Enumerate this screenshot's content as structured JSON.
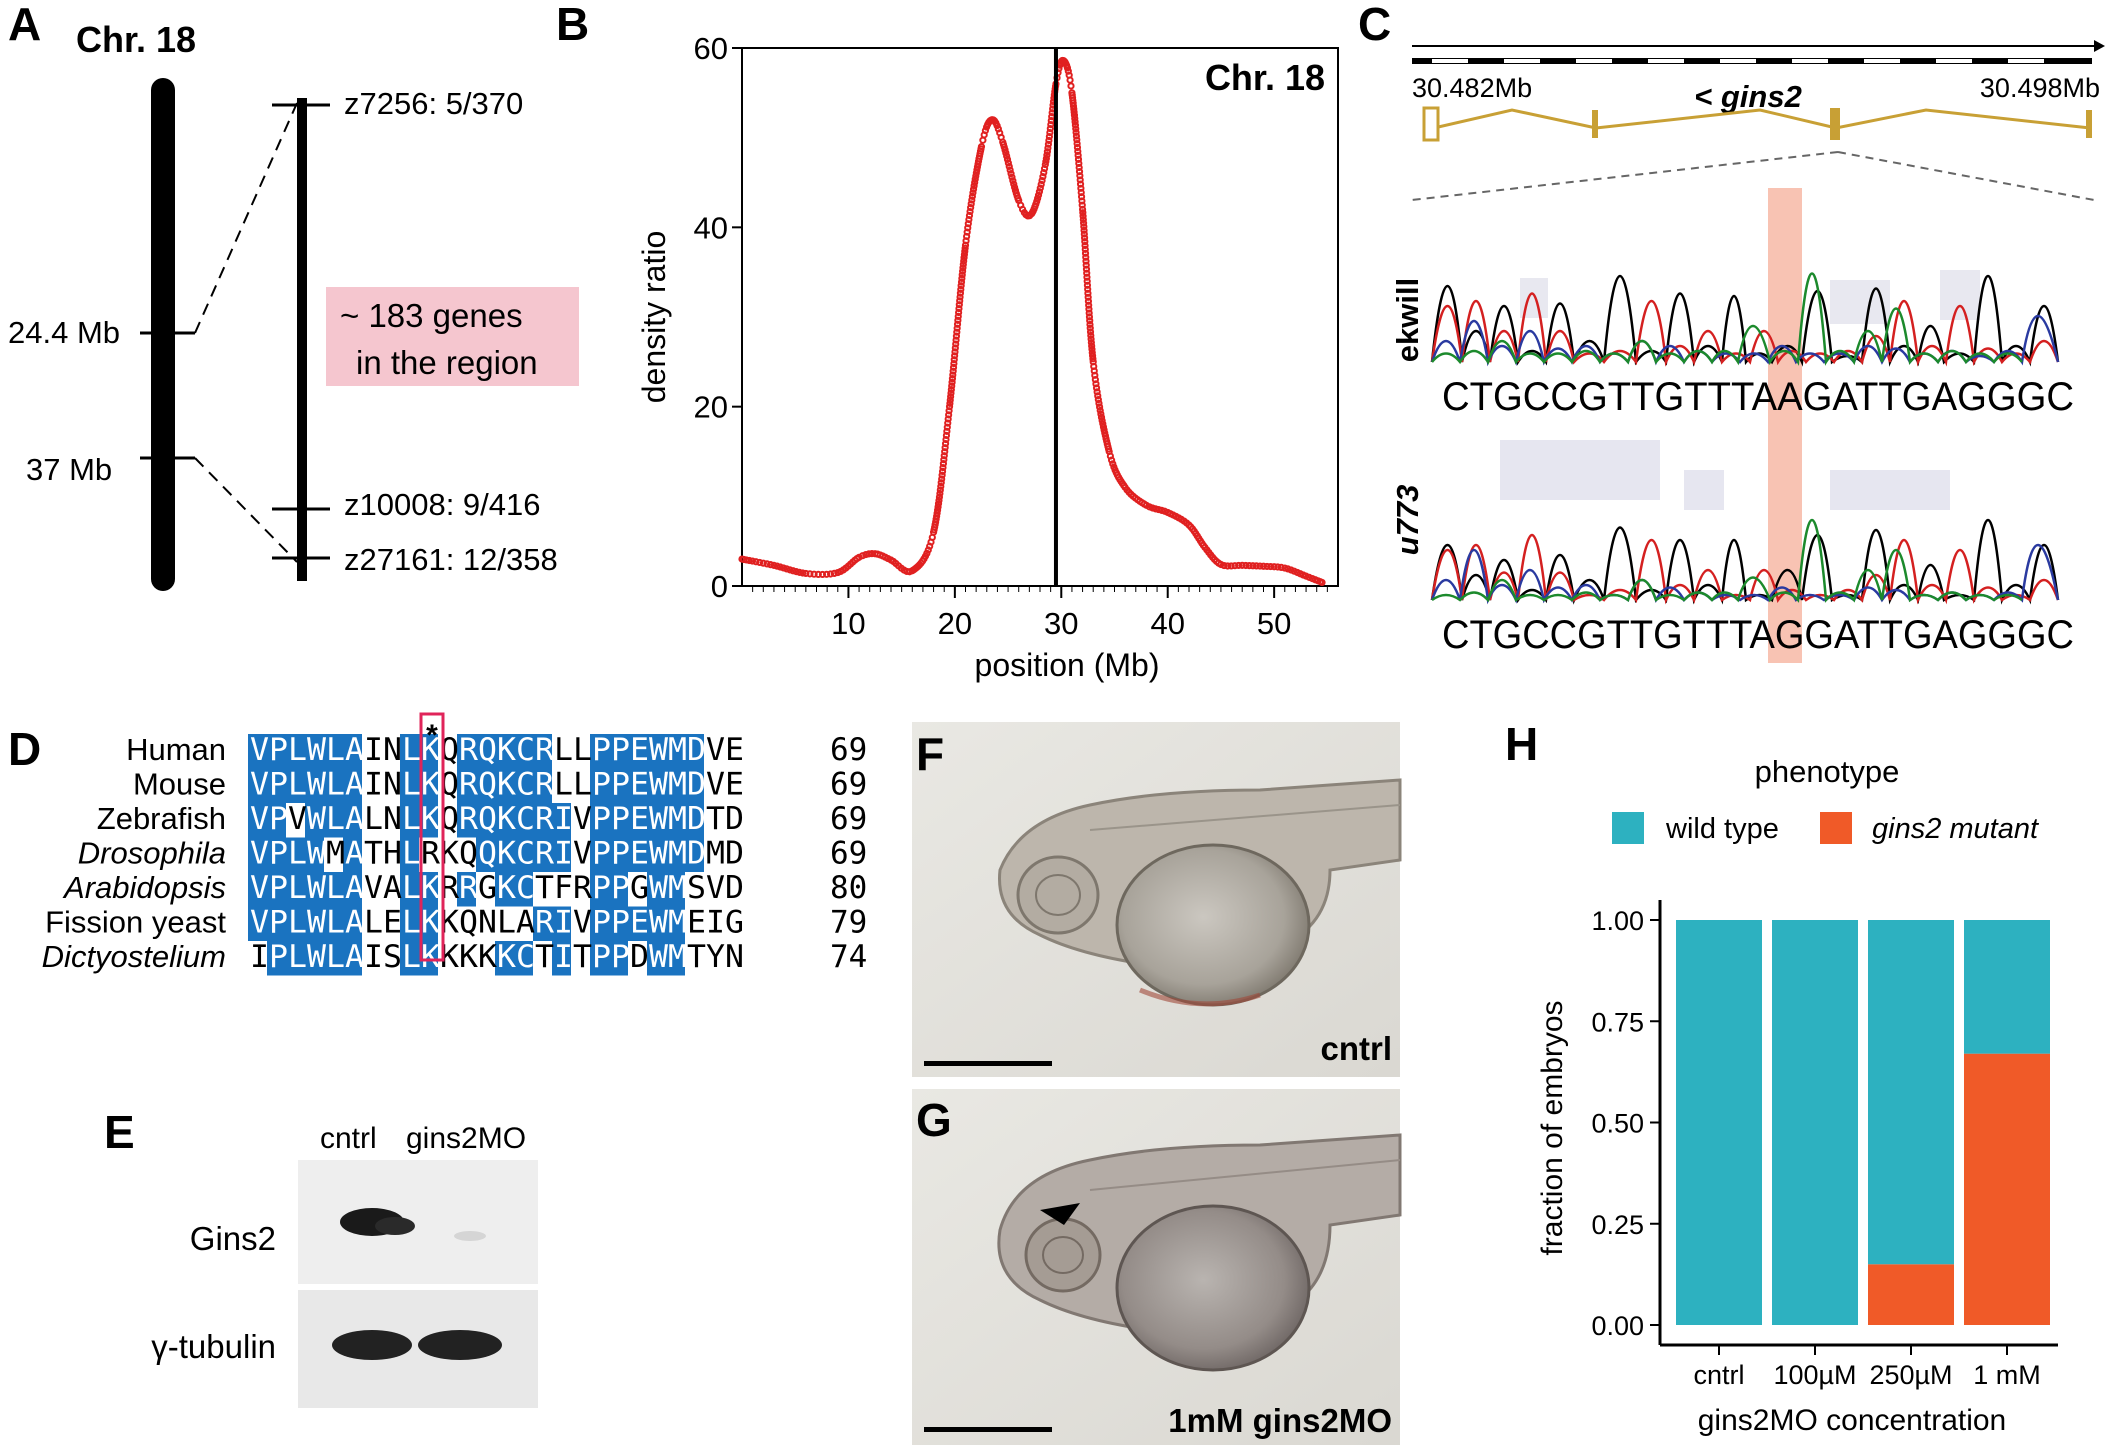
{
  "panels": {
    "a": "A",
    "b": "B",
    "c": "C",
    "d": "D",
    "e": "E",
    "f": "F",
    "g": "G",
    "h": "H"
  },
  "panelA": {
    "chrom_label": "Chr. 18",
    "pos_high": "24.4 Mb",
    "pos_low": "37 Mb",
    "markers": [
      "z7256: 5/370",
      "z10008: 9/416",
      "z27161: 12/358"
    ],
    "genes_line1": "~ 183 genes",
    "genes_line2": "in the region",
    "highlight_color": "#f5c6cf"
  },
  "chart_data": [
    {
      "id": "panelB",
      "type": "line",
      "title": "Chr. 18",
      "xlabel": "position (Mb)",
      "ylabel": "density ratio",
      "xlim": [
        0,
        56
      ],
      "ylim": [
        0,
        60
      ],
      "xticks": [
        10,
        20,
        30,
        40,
        50
      ],
      "yticks": [
        0,
        20,
        40,
        60
      ],
      "vline_x": 29.5,
      "series": [
        {
          "name": "density ratio",
          "color": "#e02020",
          "x": [
            0,
            3,
            6,
            9,
            11,
            12.5,
            14,
            16,
            18,
            19.5,
            21,
            22.5,
            23.5,
            24.5,
            26,
            27.2,
            28.5,
            29.5,
            30.2,
            31,
            32,
            33,
            34.5,
            36,
            38,
            40,
            42,
            43.5,
            45,
            47,
            49,
            51,
            53,
            54.5
          ],
          "y": [
            3,
            2.3,
            1.4,
            1.5,
            3.2,
            3.6,
            2.9,
            1.7,
            6,
            20,
            38,
            49,
            52,
            49.5,
            43,
            41.5,
            47,
            56,
            58.6,
            55,
            42,
            25,
            15,
            11,
            9,
            8.2,
            6.8,
            4.3,
            2.4,
            2.3,
            2.2,
            2,
            1.1,
            0.4
          ]
        }
      ]
    },
    {
      "id": "panelH",
      "type": "bar",
      "stacked": true,
      "legend_title": "phenotype",
      "xlabel": "gins2MO concentration",
      "ylabel": "fraction of embryos",
      "categories": [
        "cntrl",
        "100µM",
        "250µM",
        "1 mM"
      ],
      "ylim": [
        0,
        1
      ],
      "yticks": [
        "0.00",
        "0.25",
        "0.50",
        "0.75",
        "1.00"
      ],
      "series": [
        {
          "name": "gins2 mutant",
          "color": "#f05a28",
          "values": [
            0,
            0,
            0.15,
            0.67
          ]
        },
        {
          "name": "wild type",
          "color": "#2db1c0",
          "values": [
            1,
            1,
            0.85,
            0.33
          ]
        }
      ]
    }
  ],
  "panelC": {
    "coord_left": "30.482Mb",
    "coord_right": "30.498Mb",
    "gene_label": "< gins2",
    "sample1": "ekwill",
    "seq1": "CTGCCGTTGTTTAAGATTGAGGGC",
    "sample2": "u773",
    "seq2": "CTGCCGTTGTTTAGGATTGAGGGC",
    "highlight_color": "#f7b8a6"
  },
  "panelD": {
    "marker_star": "*",
    "rows": [
      {
        "species": "Human",
        "seq": "VPLWLAINLKQRQKCRLLPPEWMDVE",
        "num": "69"
      },
      {
        "species": "Mouse",
        "seq": "VPLWLAINLKQRQKCRLLPPEWMDVE",
        "num": "69"
      },
      {
        "species": "Zebrafish",
        "seq": "VPVWLALNLKQRQKCRIVPPEWMDTD",
        "num": "69"
      },
      {
        "species": "Drosophila",
        "seq": "VPLWMATHLRKQQKCRIVPPEWMDMD",
        "num": "69"
      },
      {
        "species": "Arabidopsis",
        "seq": "VPLWLAVALKRRGKCTFRPPGWMSVD",
        "num": "80"
      },
      {
        "species": "Fission yeast",
        "seq": "VPLWLALELKKQNLARIVPPEWMEIG",
        "num": "79"
      },
      {
        "species": "Dictyostelium",
        "seq": "IPLWLAISLKKKKKCTITPPDWMTYN",
        "num": "74"
      }
    ],
    "highlight_color": "#1a73c0"
  },
  "panelE": {
    "lane1": "cntrl",
    "lane2": "gins2MO",
    "row1": "Gins2",
    "row2": "γ-tubulin"
  },
  "panelF": {
    "label": "cntrl"
  },
  "panelG": {
    "label": "1mM gins2MO"
  }
}
